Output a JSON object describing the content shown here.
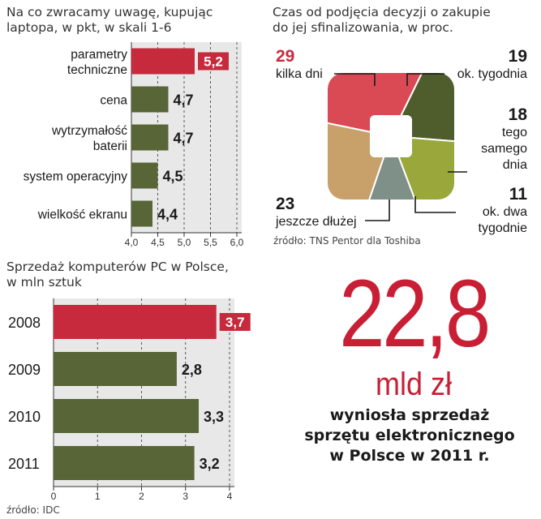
{
  "colors": {
    "highlight": "#c62a3c",
    "bar": "#586536",
    "bar_dark": "#43502a",
    "red_text": "#c81f35",
    "panel": "#e8e8e8"
  },
  "chart_data": [
    {
      "type": "bar",
      "orientation": "horizontal",
      "title": [
        "Na co zwracamy uwagę, kupując",
        "laptopa, w pkt, w skali 1-6"
      ],
      "categories": [
        "parametry techniczne",
        "cena",
        "wytrzymałość baterii",
        "system operacyjny",
        "wielkość ekranu"
      ],
      "category_lines": [
        [
          "parametry",
          "techniczne"
        ],
        [
          "cena"
        ],
        [
          "wytrzymałość",
          "baterii"
        ],
        [
          "system operacyjny"
        ],
        [
          "wielkość ekranu"
        ]
      ],
      "values": [
        5.2,
        4.7,
        4.7,
        4.5,
        4.4
      ],
      "value_labels": [
        "5,2",
        "4,7",
        "4,7",
        "4,5",
        "4,4"
      ],
      "highlight_index": 0,
      "xlim": [
        4.0,
        6.0
      ],
      "ticks": [
        4.0,
        4.5,
        5.0,
        5.5,
        6.0
      ],
      "tick_labels": [
        "4,0",
        "4,5",
        "5,0",
        "5,5",
        "6,0"
      ],
      "grid": "dashed vertical"
    },
    {
      "type": "pie",
      "title": [
        "Czas od podjęcia decyzji o zakupie",
        "do jej sfinalizowania, w proc."
      ],
      "slices": [
        {
          "label": [
            "kilka dni"
          ],
          "value": 29,
          "color": "#d94a55"
        },
        {
          "label": [
            "ok. tygodnia"
          ],
          "value": 19,
          "color": "#4f5d2c"
        },
        {
          "label": [
            "tego",
            "samego",
            "dnia"
          ],
          "value": 18,
          "color": "#9aa73a"
        },
        {
          "label": [
            "ok. dwa",
            "tygodnie"
          ],
          "value": 11,
          "color": "#7f9088"
        },
        {
          "label": [
            "jeszcze dłużej"
          ],
          "value": 23,
          "color": "#c8a06a"
        }
      ],
      "source": "źródło: TNS Pentor dla Toshiba"
    },
    {
      "type": "bar",
      "orientation": "horizontal",
      "title": [
        "Sprzedaż komputerów PC w Polsce,",
        "w mln sztuk"
      ],
      "categories": [
        "2008",
        "2009",
        "2010",
        "2011"
      ],
      "values": [
        3.7,
        2.8,
        3.3,
        3.2
      ],
      "value_labels": [
        "3,7",
        "2,8",
        "3,3",
        "3,2"
      ],
      "highlight_index": 0,
      "xlim": [
        0,
        4
      ],
      "ticks": [
        0,
        1,
        2,
        3,
        4
      ],
      "tick_labels": [
        "0",
        "1",
        "2",
        "3",
        "4"
      ],
      "grid": "dashed vertical",
      "source": "źródło: IDC"
    }
  ],
  "highlight": {
    "number": "22,8",
    "unit": "mld zł",
    "caption": [
      "wyniosła sprzedaż",
      "sprzętu elektronicznego",
      "w Polsce w  2011 r."
    ]
  }
}
